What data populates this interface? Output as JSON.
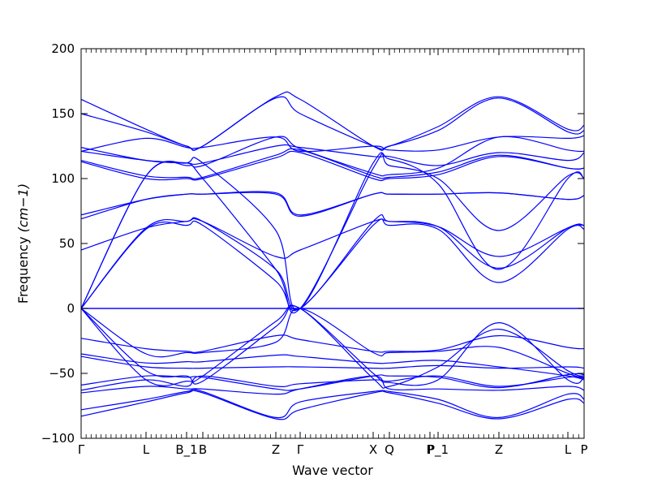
{
  "chart_data": {
    "type": "line",
    "title": "",
    "xlabel": "Wave vector",
    "ylabel": "Frequency",
    "ylabel_unit_mathtext": "(cm−1)",
    "ylim": [
      -100,
      200
    ],
    "yticks": [
      -100,
      -50,
      0,
      50,
      100,
      150,
      200
    ],
    "yticklabels": [
      "−100",
      "−50",
      "0",
      "50",
      "100",
      "150",
      "200"
    ],
    "grid": false,
    "legend": "none",
    "line_color": "#0000ff",
    "xlim": [
      0,
      62
    ],
    "high_symmetry_points": [
      {
        "label": "Γ",
        "x": 0
      },
      {
        "label": "L",
        "x": 8
      },
      {
        "label": "B_1",
        "x": 13
      },
      {
        "label": "B",
        "x": 15
      },
      {
        "label": "Z",
        "x": 24
      },
      {
        "label": "Γ",
        "x": 27
      },
      {
        "label": "X",
        "x": 36
      },
      {
        "label": "Q",
        "x": 38
      },
      {
        "label": "P",
        "x": 43
      },
      {
        "label": "P_1",
        "x": 44
      },
      {
        "label": "Z",
        "x": 51.5
      },
      {
        "label": "L",
        "x": 60
      },
      {
        "label": "P",
        "x": 62
      }
    ],
    "series": [
      {
        "x": [
          0,
          8,
          13,
          15,
          24,
          27,
          36,
          38,
          44,
          51.5,
          60,
          62
        ],
        "values": [
          -83,
          -72,
          -65,
          -65,
          -85,
          -78,
          -65,
          -65,
          -73,
          -85,
          -70,
          -73
        ]
      },
      {
        "x": [
          0,
          8,
          13,
          15,
          24,
          27,
          36,
          38,
          44,
          51.5,
          60,
          62
        ],
        "values": [
          -78,
          -70,
          -64,
          -64,
          -84,
          -72,
          -64,
          -64,
          -70,
          -84,
          -66,
          -70
        ]
      },
      {
        "x": [
          0,
          8,
          13,
          15,
          24,
          27,
          36,
          38,
          44,
          51.5,
          60,
          62
        ],
        "values": [
          -65,
          -60,
          -62,
          -62,
          -66,
          -62,
          -52,
          -62,
          -62,
          -63,
          -60,
          -63
        ]
      },
      {
        "x": [
          0,
          8,
          13,
          15,
          24,
          27,
          36,
          38,
          44,
          51.5,
          60,
          62
        ],
        "values": [
          -63,
          -55,
          -60,
          -52,
          -60,
          -58,
          -55,
          -56,
          -52,
          -60,
          -53,
          -53
        ]
      },
      {
        "x": [
          0,
          8,
          13,
          15,
          24,
          27,
          36,
          38,
          44,
          51.5,
          60,
          62
        ],
        "values": [
          -59,
          -52,
          -53,
          -53,
          -62,
          -62,
          -52,
          -52,
          -53,
          -61,
          -51,
          -51
        ]
      },
      {
        "x": [
          0,
          8,
          13,
          15,
          24,
          27,
          36,
          38,
          44,
          51.5,
          60,
          62
        ],
        "values": [
          -37,
          -45,
          -46,
          -46,
          -45,
          -45,
          -46,
          -46,
          -44,
          -46,
          -45,
          -46
        ]
      },
      {
        "x": [
          0,
          8,
          13,
          15,
          24,
          27,
          36,
          38,
          44,
          51.5,
          60,
          62
        ],
        "values": [
          -35,
          -42,
          -41,
          -41,
          -36,
          -37,
          -42,
          -42,
          -40,
          -45,
          -52,
          -55
        ]
      },
      {
        "x": [
          0,
          8,
          13,
          15,
          24,
          27,
          36,
          38,
          44,
          51.5,
          60,
          62
        ],
        "values": [
          -23,
          -31,
          -33,
          -33,
          -21,
          -24,
          -33,
          -33,
          -32,
          -21,
          -30,
          -31
        ]
      },
      {
        "x": [
          0,
          8,
          13,
          15,
          24,
          27,
          36,
          38,
          44,
          51.5,
          60,
          62
        ],
        "values": [
          0,
          -55,
          -56,
          -52,
          -10,
          0,
          -50,
          -57,
          -55,
          -11,
          -55,
          -53
        ]
      },
      {
        "x": [
          0,
          8,
          13,
          15,
          24,
          27,
          36,
          38,
          44,
          51.5,
          60,
          62
        ],
        "values": [
          0,
          -48,
          -52,
          -56,
          -14,
          0,
          -54,
          -60,
          -45,
          -16,
          -48,
          -52
        ]
      },
      {
        "x": [
          0,
          8,
          13,
          15,
          24,
          27,
          36,
          38,
          44,
          51.5,
          60,
          62
        ],
        "values": [
          0,
          -35,
          -34,
          -34,
          -26,
          0,
          -34,
          -34,
          -33,
          -30,
          -50,
          -54
        ]
      },
      {
        "x": [
          0,
          62
        ],
        "values": [
          0,
          0
        ]
      },
      {
        "x": [
          0,
          62
        ],
        "values": [
          0,
          0
        ]
      },
      {
        "x": [
          0,
          8,
          13,
          15,
          24,
          27,
          36,
          38,
          44,
          51.5,
          60,
          62
        ],
        "values": [
          0,
          61,
          64,
          64,
          21,
          0,
          64,
          64,
          61,
          20,
          61,
          61
        ]
      },
      {
        "x": [
          0,
          8,
          13,
          15,
          24,
          27,
          36,
          38,
          44,
          51.5,
          60,
          62
        ],
        "values": [
          0,
          62,
          67,
          67,
          30,
          0,
          67,
          67,
          63,
          31,
          62,
          64
        ]
      },
      {
        "x": [
          0,
          8,
          13,
          15,
          24,
          27,
          36,
          38,
          44,
          51.5,
          60,
          62
        ],
        "values": [
          45,
          62,
          67,
          67,
          40,
          45,
          67,
          67,
          63,
          40,
          62,
          64
        ]
      },
      {
        "x": [
          0,
          8,
          13,
          15,
          24,
          27,
          36,
          38,
          44,
          51.5,
          60,
          62
        ],
        "values": [
          0,
          102,
          112,
          112,
          60,
          0,
          112,
          110,
          100,
          60,
          102,
          100
        ]
      },
      {
        "x": [
          0,
          8,
          13,
          15,
          24,
          27,
          36,
          38,
          44,
          51.5,
          60,
          62
        ],
        "values": [
          0,
          102,
          110,
          100,
          30,
          0,
          108,
          115,
          96,
          30,
          100,
          100
        ]
      },
      {
        "x": [
          0,
          8,
          13,
          15,
          24,
          27,
          36,
          38,
          44,
          51.5,
          60,
          62
        ],
        "values": [
          69,
          84,
          88,
          88,
          88,
          71,
          88,
          88,
          88,
          89,
          84,
          87
        ]
      },
      {
        "x": [
          0,
          8,
          13,
          15,
          24,
          27,
          36,
          38,
          44,
          51.5,
          60,
          62
        ],
        "values": [
          72,
          84,
          88,
          88,
          89,
          72,
          88,
          88,
          88,
          89,
          84,
          87
        ]
      },
      {
        "x": [
          0,
          8,
          13,
          15,
          24,
          27,
          36,
          38,
          44,
          51.5,
          60,
          62
        ],
        "values": [
          114,
          102,
          101,
          101,
          118,
          122,
          102,
          101,
          105,
          118,
          108,
          108
        ]
      },
      {
        "x": [
          0,
          8,
          13,
          15,
          24,
          27,
          36,
          38,
          44,
          51.5,
          60,
          62
        ],
        "values": [
          113,
          100,
          100,
          100,
          116,
          120,
          100,
          100,
          103,
          117,
          108,
          108
        ]
      },
      {
        "x": [
          0,
          8,
          13,
          15,
          24,
          27,
          36,
          38,
          44,
          51.5,
          60,
          62
        ],
        "values": [
          124,
          114,
          112,
          112,
          125,
          124,
          117,
          117,
          110,
          120,
          114,
          120
        ]
      },
      {
        "x": [
          0,
          8,
          13,
          15,
          24,
          27,
          36,
          38,
          44,
          51.5,
          60,
          62
        ],
        "values": [
          121,
          114,
          112,
          110,
          132,
          123,
          104,
          103,
          108,
          132,
          122,
          121
        ]
      },
      {
        "x": [
          0,
          8,
          13,
          15,
          24,
          27,
          36,
          38,
          44,
          51.5,
          60,
          62
        ],
        "values": [
          121,
          131,
          124,
          124,
          132,
          121,
          125,
          122,
          122,
          132,
          131,
          133
        ]
      },
      {
        "x": [
          0,
          8,
          13,
          15,
          24,
          27,
          36,
          38,
          44,
          51.5,
          60,
          62
        ],
        "values": [
          150,
          136,
          125,
          125,
          162,
          150,
          125,
          125,
          137,
          162,
          136,
          137
        ]
      },
      {
        "x": [
          0,
          8,
          13,
          15,
          24,
          27,
          36,
          38,
          44,
          51.5,
          60,
          62
        ],
        "values": [
          161,
          138,
          125,
          125,
          163,
          161,
          125,
          125,
          140,
          163,
          138,
          141
        ]
      }
    ]
  }
}
